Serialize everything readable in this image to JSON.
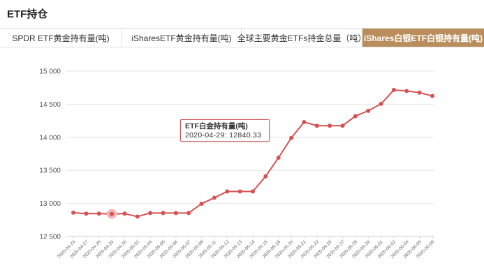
{
  "page": {
    "title": "ETF持仓"
  },
  "tabs": [
    {
      "label": "SPDR ETF黄金持有量(吨)",
      "active": false
    },
    {
      "label": "iSharesETF黄金持有量(吨)",
      "active": false
    },
    {
      "label": "全球主要黄金ETFs持金总量（吨）",
      "active": false
    },
    {
      "label": "iShares白银ETF白银持有量(吨)",
      "active": true
    }
  ],
  "colors": {
    "accent_tab": "#b98d5c",
    "line": "#d65252",
    "hover_point": "#f3b5b5"
  },
  "tooltip": {
    "title": "ETF白金持有量(吨)",
    "value": "2020-04-29: 12840.33"
  },
  "chart_data": {
    "type": "line",
    "series": [
      {
        "name": "ETF白金持有量(吨)"
      }
    ],
    "ylim": [
      12500,
      15000
    ],
    "yticks": [
      12500,
      13000,
      13500,
      14000,
      14500,
      15000
    ],
    "ytick_labels": [
      "12 500",
      "13 000",
      "13 500",
      "14 000",
      "14 500",
      "15 000"
    ],
    "x": [
      "2020-04-24",
      "2020-04-27",
      "2020-04-28",
      "2020-04-29",
      "2020-04-30",
      "2020-05-01",
      "2020-05-04",
      "2020-05-05",
      "2020-05-06",
      "2020-05-07",
      "2020-05-08",
      "2020-05-11",
      "2020-05-12",
      "2020-05-13",
      "2020-05-14",
      "2020-05-15",
      "2020-05-18",
      "2020-05-20",
      "2020-05-21",
      "2020-05-22",
      "2020-05-26",
      "2020-05-27",
      "2020-05-28",
      "2020-05-29",
      "2020-06-01",
      "2020-06-02",
      "2020-06-04",
      "2020-06-05",
      "2020-06-08"
    ],
    "values": [
      12860,
      12845,
      12845,
      12840.33,
      12845,
      12800,
      12855,
      12855,
      12855,
      12855,
      12995,
      13085,
      13180,
      13180,
      13180,
      13410,
      13690,
      13990,
      14230,
      14175,
      14175,
      14175,
      14320,
      14400,
      14505,
      14715,
      14700,
      14675,
      14625
    ],
    "highlight_index": 3,
    "grid": true
  }
}
